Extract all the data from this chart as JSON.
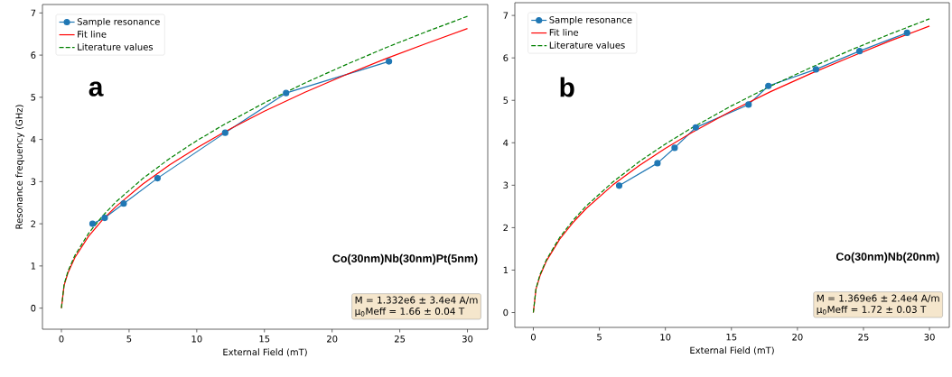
{
  "chart_data": [
    {
      "type": "line",
      "xlabel": "External Field (mT)",
      "ylabel": "Resonance frequency (GHz)",
      "xlim": [
        -1.4,
        31.5
      ],
      "ylim": [
        -0.5,
        7.2
      ],
      "xticks": [
        0,
        5,
        10,
        15,
        20,
        25,
        30
      ],
      "yticks": [
        0,
        1,
        2,
        3,
        4,
        5,
        6,
        7
      ],
      "legend": "top left",
      "grid": false,
      "annotations": [
        "**a**",
        "**Co(30nm)Nb(30nm)Pt(5nm)**",
        "M = 1.332e6 ± 3.4e4 A/m",
        "μ$_{0}$Meff = 1.66 ± 0.04 T"
      ],
      "series": [
        {
          "name": "Sample resonance",
          "color": "#1f77b4",
          "marker": "circle",
          "line_style": "solid",
          "x": [
            2.3,
            3.2,
            4.6,
            7.1,
            12.1,
            16.6,
            24.2
          ],
          "values": [
            2.0,
            2.14,
            2.48,
            3.08,
            4.16,
            5.1,
            5.85
          ]
        },
        {
          "name": "Fit line",
          "color": "#ff0000",
          "marker": "none",
          "line_style": "solid",
          "x": [
            0,
            0.2,
            0.5,
            1,
            2,
            3,
            4,
            6,
            8,
            10,
            12,
            15,
            18,
            21,
            24,
            27,
            30
          ],
          "values": [
            0,
            0.54,
            0.85,
            1.2,
            1.7,
            2.08,
            2.4,
            2.94,
            3.4,
            3.8,
            4.17,
            4.67,
            5.12,
            5.53,
            5.92,
            6.28,
            6.63
          ]
        },
        {
          "name": "Literature values",
          "color": "#008000",
          "marker": "none",
          "line_style": "dashed",
          "x": [
            0,
            0.2,
            0.5,
            1,
            2,
            3,
            4,
            6,
            8,
            10,
            12,
            15,
            18,
            21,
            24,
            27,
            30
          ],
          "values": [
            0,
            0.56,
            0.89,
            1.25,
            1.77,
            2.17,
            2.51,
            3.07,
            3.55,
            3.97,
            4.35,
            4.87,
            5.34,
            5.77,
            6.18,
            6.56,
            6.92
          ]
        }
      ]
    },
    {
      "type": "line",
      "xlabel": "External Field (mT)",
      "xlim": [
        -1.4,
        31.5
      ],
      "ylim": [
        -0.35,
        7.3
      ],
      "xticks": [
        0,
        5,
        10,
        15,
        20,
        25,
        30
      ],
      "yticks": [
        0,
        1,
        2,
        3,
        4,
        5,
        6,
        7
      ],
      "legend": "top left",
      "grid": false,
      "annotations": [
        "**b**",
        "**Co(30nm)Nb(20nm)**",
        "M = 1.369e6 ± 2.4e4 A/m",
        "μ$_{0}$Meff = 1.72 ± 0.03 T"
      ],
      "series": [
        {
          "name": "Sample resonance",
          "color": "#1f77b4",
          "marker": "circle",
          "line_style": "solid",
          "x": [
            6.5,
            9.4,
            10.7,
            12.3,
            16.3,
            17.8,
            21.4,
            24.7,
            28.3
          ],
          "values": [
            2.99,
            3.52,
            3.88,
            4.36,
            4.9,
            5.34,
            5.73,
            6.16,
            6.59
          ]
        },
        {
          "name": "Fit line",
          "color": "#ff0000",
          "marker": "none",
          "line_style": "solid",
          "x": [
            0,
            0.2,
            0.5,
            1,
            2,
            3,
            4,
            6,
            8,
            10,
            12,
            15,
            18,
            21,
            24,
            27,
            30
          ],
          "values": [
            0,
            0.55,
            0.86,
            1.22,
            1.73,
            2.12,
            2.45,
            3.0,
            3.46,
            3.87,
            4.24,
            4.75,
            5.21,
            5.63,
            6.02,
            6.4,
            6.75
          ]
        },
        {
          "name": "Literature values",
          "color": "#008000",
          "marker": "none",
          "line_style": "dashed",
          "x": [
            0,
            0.2,
            0.5,
            1,
            2,
            3,
            4,
            6,
            8,
            10,
            12,
            15,
            18,
            21,
            24,
            27,
            30
          ],
          "values": [
            0,
            0.56,
            0.89,
            1.25,
            1.77,
            2.17,
            2.51,
            3.07,
            3.55,
            3.97,
            4.35,
            4.87,
            5.34,
            5.77,
            6.18,
            6.56,
            6.92
          ]
        }
      ]
    }
  ]
}
